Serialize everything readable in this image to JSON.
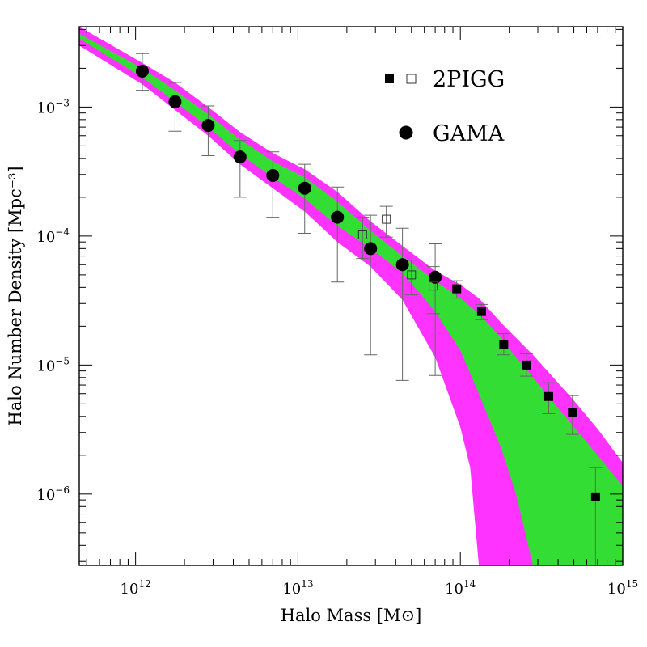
{
  "chart_data": {
    "type": "scatter",
    "title": "",
    "xlabel": "Halo Mass [M⊙]",
    "ylabel": "Halo Number Density [Mpc⁻³]",
    "xscale": "log",
    "yscale": "log",
    "xlim": [
      450000000000.0,
      1000000000000000.0
    ],
    "ylim": [
      2.8e-07,
      0.0042
    ],
    "x_ticks": [
      {
        "label_base": "10",
        "label_exp": "12",
        "value": 1000000000000.0
      },
      {
        "label_base": "10",
        "label_exp": "13",
        "value": 10000000000000.0
      },
      {
        "label_base": "10",
        "label_exp": "14",
        "value": 100000000000000.0
      },
      {
        "label_base": "10",
        "label_exp": "15",
        "value": 1000000000000000.0
      }
    ],
    "y_ticks": [
      {
        "label_base": "10",
        "label_exp": "−3",
        "value": 0.001
      },
      {
        "label_base": "10",
        "label_exp": "−4",
        "value": 0.0001
      },
      {
        "label_base": "10",
        "label_exp": "−5",
        "value": 1e-05
      },
      {
        "label_base": "10",
        "label_exp": "−6",
        "value": 1e-06
      }
    ],
    "legend": {
      "position": "top-right",
      "entries": [
        {
          "label": "2PIGG",
          "markers": [
            "filled-square",
            "open-square"
          ]
        },
        {
          "label": "GAMA",
          "markers": [
            "filled-circle"
          ]
        }
      ]
    },
    "colors": {
      "outer_band": "#ff33ff",
      "inner_band": "#33dd33",
      "markers": "#000000",
      "errorbars": "#666666"
    },
    "bands": [
      {
        "name": "outer",
        "x": [
          450000000000.0,
          1100000000000.0,
          1750000000000.0,
          2800000000000.0,
          4400000000000.0,
          7000000000000.0,
          11000000000000.0,
          17500000000000.0,
          28000000000000.0,
          44000000000000.0,
          70000000000000.0,
          100000000000000.0,
          115000000000000.0,
          130000000000000.0,
          180000000000000.0,
          280000000000000.0,
          500000000000000.0,
          700000000000000.0,
          1000000000000000.0
        ],
        "upper": [
          0.0042,
          0.0022,
          0.00155,
          0.001,
          0.00064,
          0.00044,
          0.00033,
          0.00022,
          0.00013,
          8.4e-05,
          5.4e-05,
          4.2e-05,
          3.7e-05,
          3.3e-05,
          2.1e-05,
          1.2e-05,
          5.3e-06,
          3.2e-06,
          1.75e-06
        ],
        "lower": [
          0.003,
          0.0015,
          0.00095,
          0.0006,
          0.00036,
          0.000235,
          0.000155,
          9e-05,
          5.8e-05,
          3.2e-05,
          1.15e-05,
          3.3e-06,
          1.6e-06,
          2.8e-07,
          2.8e-07,
          2.8e-07,
          2.8e-07,
          2.8e-07,
          2.8e-07
        ]
      },
      {
        "name": "inner",
        "x": [
          450000000000.0,
          1100000000000.0,
          1750000000000.0,
          2800000000000.0,
          4400000000000.0,
          7000000000000.0,
          11000000000000.0,
          17500000000000.0,
          28000000000000.0,
          44000000000000.0,
          70000000000000.0,
          100000000000000.0,
          130000000000000.0,
          180000000000000.0,
          220000000000000.0,
          280000000000000.0,
          500000000000000.0,
          700000000000000.0,
          1000000000000000.0
        ],
        "upper": [
          0.0037,
          0.002,
          0.00135,
          0.00088,
          0.00056,
          0.00038,
          0.000285,
          0.000185,
          0.00011,
          7e-05,
          4.5e-05,
          3.3e-05,
          2.5e-05,
          1.6e-05,
          1.15e-05,
          8e-06,
          3.3e-06,
          2e-06,
          1.15e-06
        ],
        "lower": [
          0.0034,
          0.0017,
          0.0011,
          0.0007,
          0.00043,
          0.000285,
          0.000195,
          0.00012,
          8e-05,
          5.2e-05,
          2.6e-05,
          1.3e-05,
          6e-06,
          2.2e-06,
          1e-06,
          2.8e-07,
          2.8e-07,
          2.8e-07,
          2.8e-07
        ]
      }
    ],
    "series": [
      {
        "name": "GAMA",
        "marker": "filled-circle",
        "points": [
          {
            "x": 1100000000000.0,
            "y": 0.0019,
            "err_low": 0.00135,
            "err_high": 0.0026
          },
          {
            "x": 1750000000000.0,
            "y": 0.0011,
            "err_low": 0.00065,
            "err_high": 0.00155
          },
          {
            "x": 2800000000000.0,
            "y": 0.00072,
            "err_low": 0.00042,
            "err_high": 0.00102
          },
          {
            "x": 4400000000000.0,
            "y": 0.00041,
            "err_low": 0.0002,
            "err_high": 0.00055
          },
          {
            "x": 7000000000000.0,
            "y": 0.000295,
            "err_low": 0.00014,
            "err_high": 0.00045
          },
          {
            "x": 11000000000000.0,
            "y": 0.000235,
            "err_low": 0.000105,
            "err_high": 0.00036
          },
          {
            "x": 17500000000000.0,
            "y": 0.00014,
            "err_low": 4.4e-05,
            "err_high": 0.00024
          },
          {
            "x": 28000000000000.0,
            "y": 8e-05,
            "err_low": 1.2e-05,
            "err_high": 0.000145
          },
          {
            "x": 44000000000000.0,
            "y": 6e-05,
            "err_low": 7.6e-06,
            "err_high": 0.000115
          },
          {
            "x": 70000000000000.0,
            "y": 4.8e-05,
            "err_low": 8.3e-06,
            "err_high": 8.7e-05
          }
        ]
      },
      {
        "name": "2PIGG",
        "marker": "open-square",
        "points": [
          {
            "x": 25000000000000.0,
            "y": 0.000102,
            "err_low": 6.7e-05,
            "err_high": 0.00014
          },
          {
            "x": 35000000000000.0,
            "y": 0.000135,
            "err_low": 9.8e-05,
            "err_high": 0.00017
          },
          {
            "x": 50000000000000.0,
            "y": 5e-05,
            "err_low": 3.5e-05,
            "err_high": 6.5e-05
          },
          {
            "x": 68000000000000.0,
            "y": 4.1e-05,
            "err_low": 2.5e-05,
            "err_high": 5.8e-05
          }
        ]
      },
      {
        "name": "2PIGG",
        "marker": "filled-square",
        "points": [
          {
            "x": 95000000000000.0,
            "y": 3.9e-05,
            "err_low": 3.3e-05,
            "err_high": 4.5e-05
          },
          {
            "x": 135000000000000.0,
            "y": 2.6e-05,
            "err_low": 2.25e-05,
            "err_high": 2.95e-05
          },
          {
            "x": 185000000000000.0,
            "y": 1.45e-05,
            "err_low": 1.2e-05,
            "err_high": 1.75e-05
          },
          {
            "x": 255000000000000.0,
            "y": 1e-05,
            "err_low": 8.2e-06,
            "err_high": 1.22e-05
          },
          {
            "x": 350000000000000.0,
            "y": 5.7e-06,
            "err_low": 4.2e-06,
            "err_high": 7.3e-06
          },
          {
            "x": 490000000000000.0,
            "y": 4.3e-06,
            "err_low": 2.9e-06,
            "err_high": 5.8e-06
          },
          {
            "x": 680000000000000.0,
            "y": 9.5e-07,
            "err_low": 2.8e-07,
            "err_high": 1.6e-06
          }
        ]
      }
    ]
  }
}
